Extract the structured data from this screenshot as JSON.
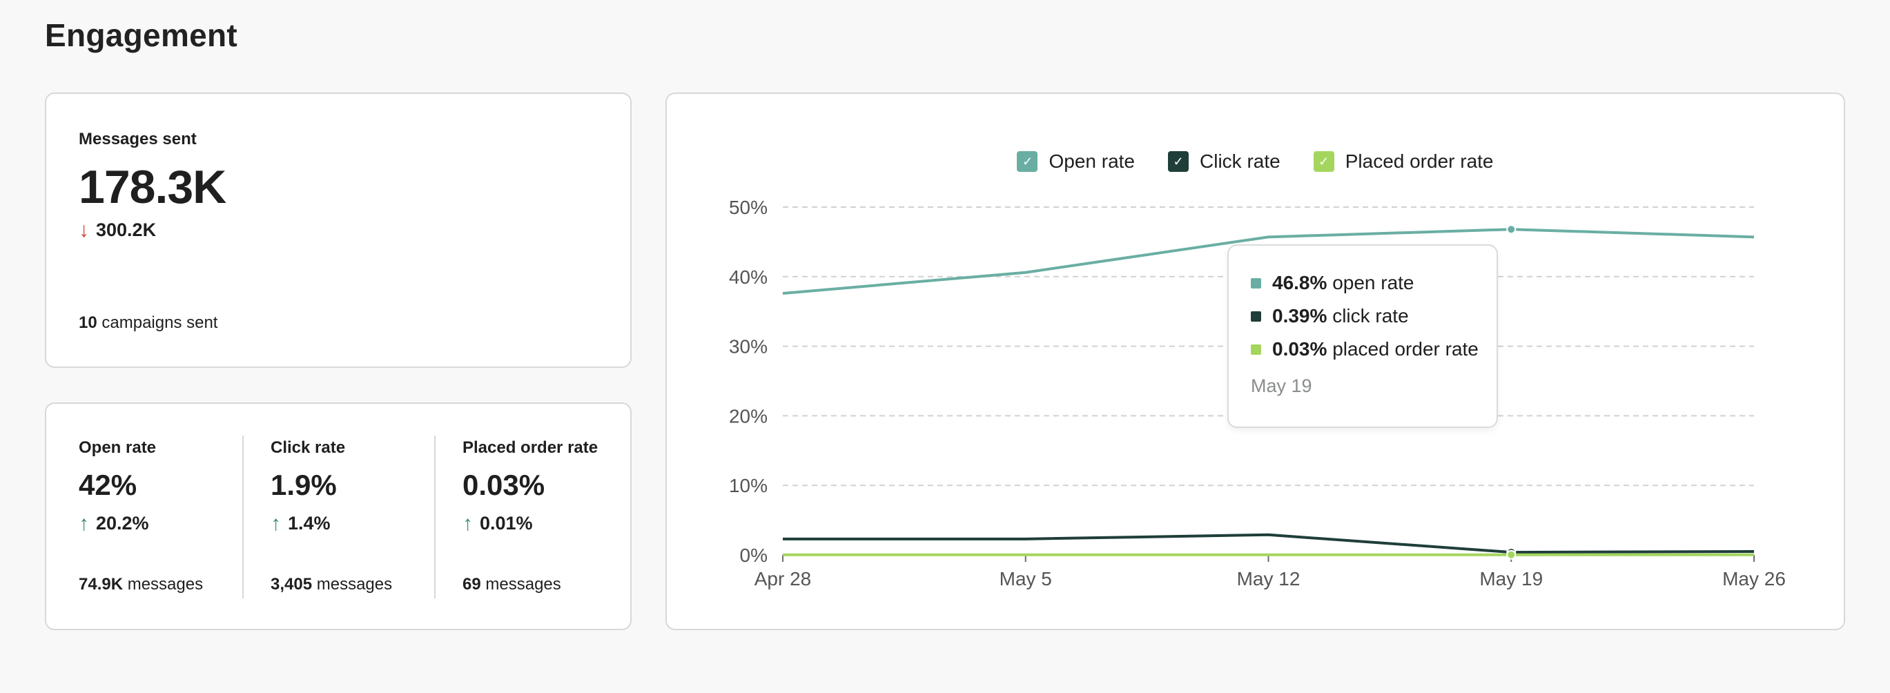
{
  "page": {
    "title": "Engagement"
  },
  "messages_card": {
    "label": "Messages sent",
    "value": "178.3K",
    "delta_direction": "down",
    "delta": "300.2K",
    "campaigns_count": "10",
    "campaigns_suffix": "campaigns sent"
  },
  "rates_card": {
    "items": [
      {
        "label": "Open rate",
        "value": "42%",
        "delta_direction": "up",
        "delta": "20.2%",
        "messages_count": "74.9K",
        "messages_suffix": "messages"
      },
      {
        "label": "Click rate",
        "value": "1.9%",
        "delta_direction": "up",
        "delta": "1.4%",
        "messages_count": "3,405",
        "messages_suffix": "messages"
      },
      {
        "label": "Placed order rate",
        "value": "0.03%",
        "delta_direction": "up",
        "delta": "0.01%",
        "messages_count": "69",
        "messages_suffix": "messages"
      }
    ]
  },
  "colors": {
    "open_rate": "#6aaea3",
    "click_rate": "#1f3e3a",
    "placed_order_rate": "#a4d65e",
    "arrow_down": "#d0412e",
    "arrow_up": "#3d8e78"
  },
  "tooltip": {
    "rows": [
      {
        "value": "46.8%",
        "label": "open rate",
        "color": "#6aaea3"
      },
      {
        "value": "0.39%",
        "label": "click rate",
        "color": "#1f3e3a"
      },
      {
        "value": "0.03%",
        "label": "placed order rate",
        "color": "#a4d65e"
      }
    ],
    "date": "May 19"
  },
  "chart_data": {
    "type": "line",
    "x": [
      "Apr 28",
      "May 5",
      "May 12",
      "May 19",
      "May 26"
    ],
    "y_ticks": [
      "0%",
      "10%",
      "20%",
      "30%",
      "40%",
      "50%"
    ],
    "ylim": [
      0,
      50
    ],
    "grid": true,
    "legend_position": "top-center",
    "series": [
      {
        "name": "Open rate",
        "color": "#6aaea3",
        "values": [
          37.6,
          40.6,
          45.7,
          46.8,
          45.7
        ]
      },
      {
        "name": "Click rate",
        "color": "#1f3e3a",
        "values": [
          2.3,
          2.3,
          2.9,
          0.39,
          0.5
        ]
      },
      {
        "name": "Placed order rate",
        "color": "#a4d65e",
        "values": [
          0.02,
          0.02,
          0.03,
          0.03,
          0.02
        ]
      }
    ],
    "highlight_index": 3
  }
}
